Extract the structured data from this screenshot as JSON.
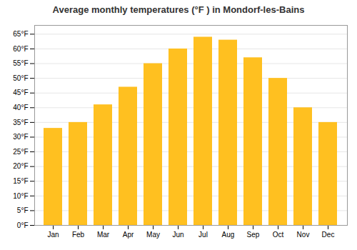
{
  "chart_data": {
    "type": "bar",
    "title": "Average monthly temperatures (°F ) in Mondorf-les-Bains",
    "categories": [
      "Jan",
      "Feb",
      "Mar",
      "Apr",
      "May",
      "Jun",
      "Jul",
      "Aug",
      "Sep",
      "Oct",
      "Nov",
      "Dec"
    ],
    "values": [
      33,
      35,
      41,
      47,
      55,
      60,
      64,
      63,
      57,
      50,
      40,
      35
    ],
    "color": "#FFC020",
    "ylim": [
      0,
      68
    ],
    "yticks": [
      {
        "value": 0,
        "label": "0°F"
      },
      {
        "value": 5,
        "label": "5°F"
      },
      {
        "value": 10,
        "label": "10°F"
      },
      {
        "value": 15,
        "label": "15°F"
      },
      {
        "value": 20,
        "label": "20°F"
      },
      {
        "value": 25,
        "label": "25°F"
      },
      {
        "value": 30,
        "label": "30°F"
      },
      {
        "value": 35,
        "label": "35°F"
      },
      {
        "value": 40,
        "label": "40°F"
      },
      {
        "value": 45,
        "label": "45°F"
      },
      {
        "value": 50,
        "label": "50°F"
      },
      {
        "value": 55,
        "label": "55°F"
      },
      {
        "value": 60,
        "label": "60°F"
      },
      {
        "value": 65,
        "label": "65°F"
      }
    ],
    "grid": true
  }
}
